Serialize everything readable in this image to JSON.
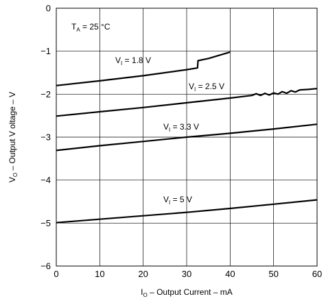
{
  "chart_data": {
    "type": "line",
    "title": "",
    "xlabel": {
      "main": "I",
      "sub": "O",
      "rest": " – Output Current – mA"
    },
    "ylabel": {
      "main": "V",
      "sub": "O",
      "rest": " – Output V   oltage – V"
    },
    "xlim": [
      0,
      60
    ],
    "ylim": [
      -6,
      0
    ],
    "xticks": [
      0,
      10,
      20,
      30,
      40,
      50,
      60
    ],
    "yticks": [
      0,
      -1,
      -2,
      -3,
      -4,
      -5,
      -6
    ],
    "grid": true,
    "condition": {
      "main": "T",
      "sub": "A",
      "rest": " = 25 °C"
    },
    "series": [
      {
        "name": "V_I = 1.8 V",
        "label": {
          "main": "V",
          "sub": "I",
          "rest": " = 1.8 V"
        },
        "points": [
          [
            0,
            -1.8
          ],
          [
            10,
            -1.69
          ],
          [
            20,
            -1.57
          ],
          [
            30,
            -1.43
          ],
          [
            32.5,
            -1.39
          ],
          [
            32.6,
            -1.22
          ],
          [
            35,
            -1.17
          ],
          [
            40,
            -1.02
          ]
        ]
      },
      {
        "name": "V_I = 2.5 V",
        "label": {
          "main": "V",
          "sub": "I",
          "rest": " = 2.5 V"
        },
        "points": [
          [
            0,
            -2.51
          ],
          [
            10,
            -2.41
          ],
          [
            20,
            -2.31
          ],
          [
            30,
            -2.2
          ],
          [
            40,
            -2.09
          ],
          [
            45,
            -2.03
          ],
          [
            46,
            -1.99
          ],
          [
            47,
            -2.03
          ],
          [
            48,
            -1.98
          ],
          [
            49,
            -2.02
          ],
          [
            50,
            -1.97
          ],
          [
            51,
            -2.0
          ],
          [
            52,
            -1.94
          ],
          [
            53,
            -1.98
          ],
          [
            54,
            -1.92
          ],
          [
            55,
            -1.95
          ],
          [
            56,
            -1.9
          ],
          [
            58,
            -1.89
          ],
          [
            60,
            -1.87
          ]
        ]
      },
      {
        "name": "V_I = 3.3 V",
        "label": {
          "main": "V",
          "sub": "I",
          "rest": " = 3.3 V"
        },
        "points": [
          [
            0,
            -3.31
          ],
          [
            10,
            -3.2
          ],
          [
            20,
            -3.1
          ],
          [
            30,
            -3.0
          ],
          [
            40,
            -2.91
          ],
          [
            50,
            -2.81
          ],
          [
            60,
            -2.7
          ]
        ]
      },
      {
        "name": "V_I = 5 V",
        "label": {
          "main": "V",
          "sub": "I",
          "rest": " = 5 V"
        },
        "points": [
          [
            0,
            -4.99
          ],
          [
            10,
            -4.91
          ],
          [
            20,
            -4.83
          ],
          [
            30,
            -4.75
          ],
          [
            40,
            -4.66
          ],
          [
            50,
            -4.56
          ],
          [
            60,
            -4.46
          ]
        ]
      }
    ]
  }
}
